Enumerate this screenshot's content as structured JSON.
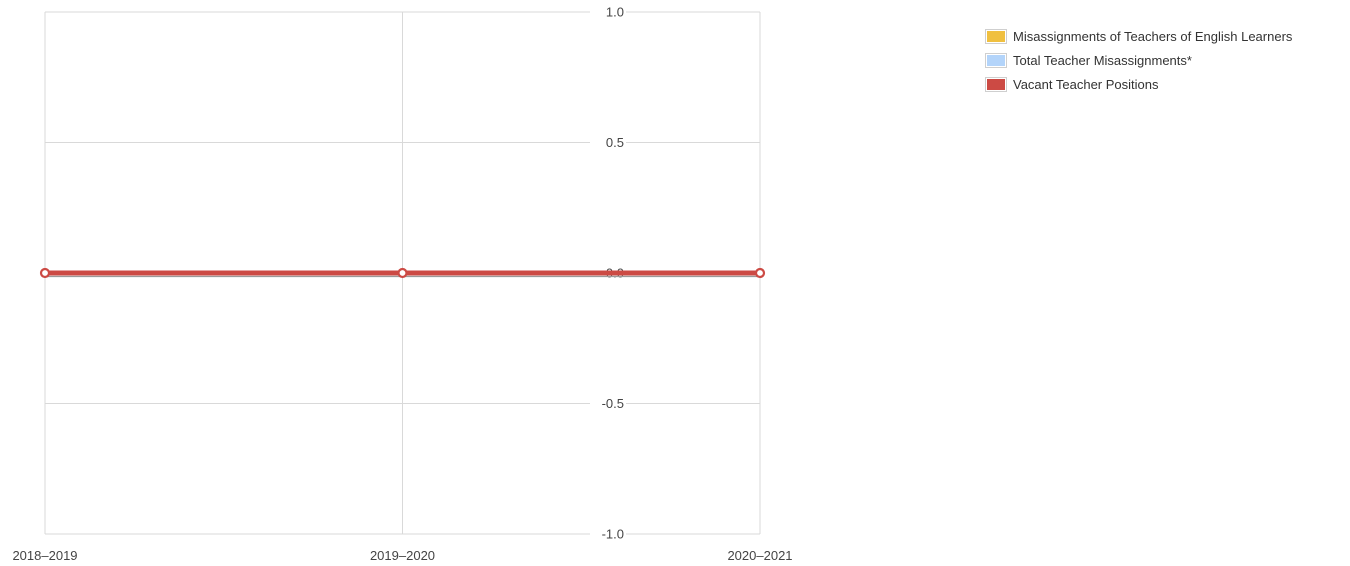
{
  "chart_data": {
    "type": "line",
    "categories": [
      "2018–2019",
      "2019–2020",
      "2020–2021"
    ],
    "series": [
      {
        "name": "Misassignments of Teachers of English Learners",
        "values": [
          0,
          0,
          0
        ],
        "color": "#f0c040"
      },
      {
        "name": "Total Teacher Misassignments*",
        "values": [
          0,
          0,
          0
        ],
        "color": "#b3d4fa"
      },
      {
        "name": "Vacant Teacher Positions",
        "values": [
          0,
          0,
          0
        ],
        "color": "#cc4a44"
      }
    ],
    "yticks": [
      "1.0",
      "0.5",
      "0.0",
      "-0.5",
      "-1.0"
    ],
    "ylim": [
      -1,
      1
    ],
    "grid": true,
    "legend_position": "top-right"
  }
}
